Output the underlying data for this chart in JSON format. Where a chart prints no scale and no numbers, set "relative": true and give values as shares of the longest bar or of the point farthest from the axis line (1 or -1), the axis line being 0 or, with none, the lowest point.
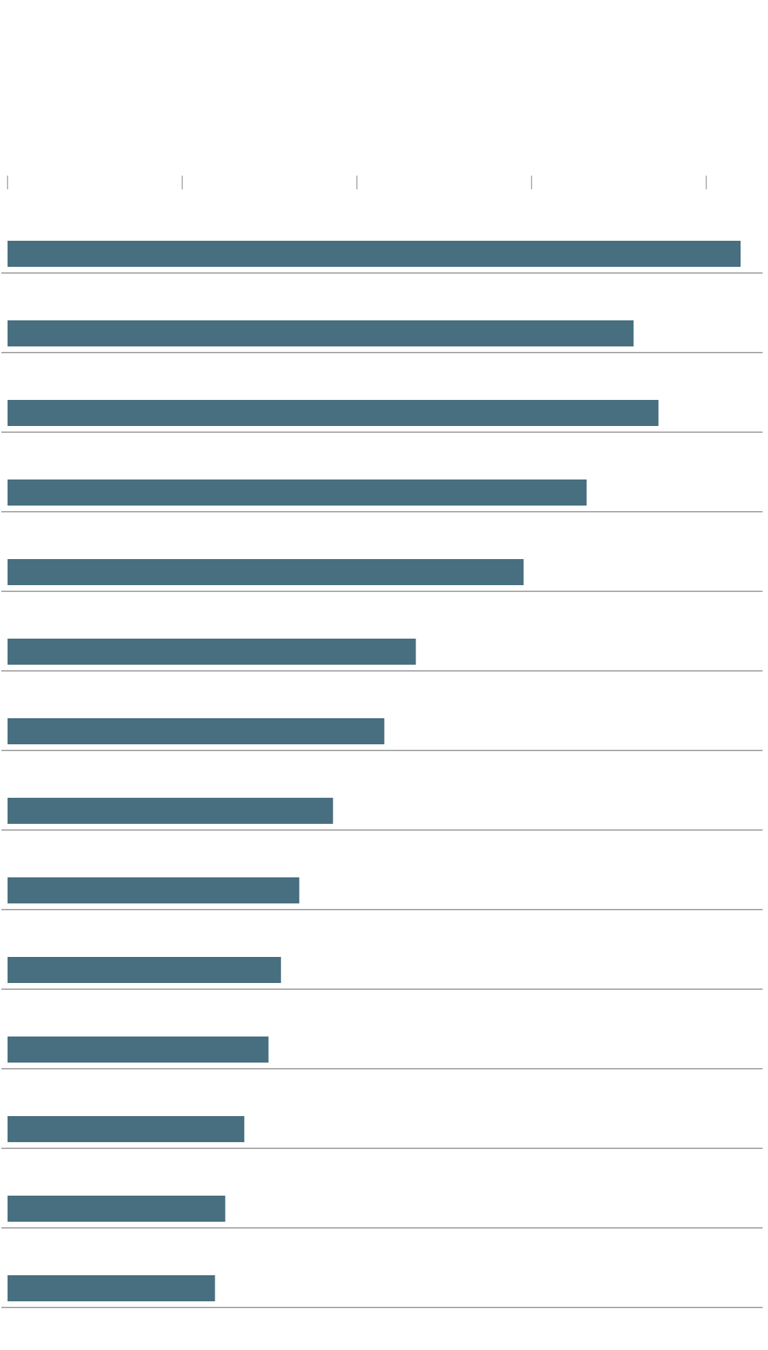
{
  "chart_data": {
    "type": "bar",
    "orientation": "horizontal",
    "relative": true,
    "categories": [
      null,
      null,
      null,
      null,
      null,
      null,
      null,
      null,
      null,
      null,
      null,
      null,
      null,
      null
    ],
    "values": [
      1,
      0.854,
      0.888,
      0.79,
      0.704,
      0.557,
      0.514,
      0.444,
      0.398,
      0.373,
      0.356,
      0.323,
      0.297,
      0.283
    ],
    "color": "#476f80",
    "grid": "y"
  }
}
